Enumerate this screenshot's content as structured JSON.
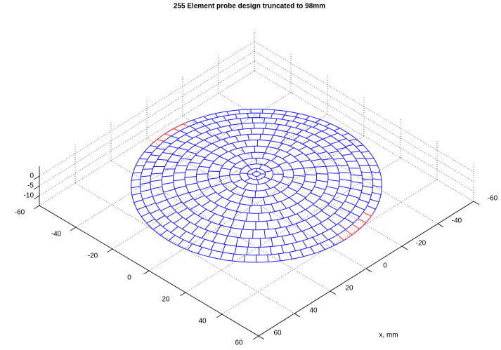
{
  "chart_data": {
    "type": "surface3d",
    "title": "255 Element probe design truncated to 98mm",
    "xlabel": "x, mm",
    "xlim": [
      -60,
      60
    ],
    "ylim": [
      -60,
      60
    ],
    "zlim": [
      -15,
      5
    ],
    "xticks": [
      -60,
      -40,
      -20,
      0,
      20,
      40,
      60
    ],
    "yticks": [
      -60,
      -40,
      -20,
      0,
      20,
      40,
      60
    ],
    "zticks": [
      -10,
      -5,
      0
    ],
    "grid": true,
    "color": "#1a1aff",
    "highlight_color": "#ff3030"
  }
}
